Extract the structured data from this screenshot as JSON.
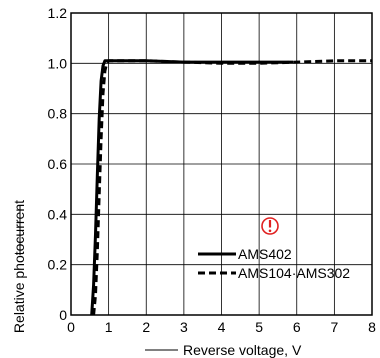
{
  "chart_data": {
    "type": "line",
    "title": "",
    "xlabel": "Reverse voltage, V",
    "ylabel": "Relative photocurrent",
    "xlim": [
      0,
      8
    ],
    "ylim": [
      0,
      1.2
    ],
    "x_ticks": [
      0,
      1,
      2,
      3,
      4,
      5,
      6,
      7,
      8
    ],
    "y_ticks": [
      0,
      0.2,
      0.4,
      0.6,
      0.8,
      1.0,
      1.2
    ],
    "x_tick_labels": [
      "0",
      "1",
      "2",
      "3",
      "4",
      "5",
      "6",
      "7",
      "8"
    ],
    "y_tick_labels": [
      "0",
      "0.2",
      "0.4",
      "0.6",
      "0.8",
      "1.0",
      "1.2"
    ],
    "grid": true,
    "legend_position": "bottom-right",
    "series": [
      {
        "name": "AMS402",
        "style": "solid",
        "color": "#000000",
        "x": [
          0.55,
          0.6,
          0.65,
          0.7,
          0.75,
          0.8,
          0.85,
          0.9,
          1.0,
          2.0,
          3.0,
          4.0,
          5.0,
          5.9
        ],
        "y": [
          0.0,
          0.12,
          0.32,
          0.55,
          0.78,
          0.93,
          0.99,
          1.01,
          1.01,
          1.01,
          1.005,
          1.005,
          1.005,
          1.005
        ]
      },
      {
        "name": "AMS104·AMS302",
        "style": "dashed",
        "color": "#000000",
        "x": [
          0.6,
          0.65,
          0.7,
          0.75,
          0.8,
          0.85,
          0.9,
          0.95,
          1.0,
          2.0,
          3.0,
          4.0,
          5.0,
          6.0,
          7.0,
          8.0
        ],
        "y": [
          0.0,
          0.08,
          0.25,
          0.48,
          0.7,
          0.88,
          0.97,
          1.0,
          1.01,
          1.01,
          1.005,
          1.0,
          1.0,
          1.005,
          1.01,
          1.01
        ]
      }
    ],
    "annotations": [
      {
        "type": "warning-icon",
        "color": "#e02020",
        "x": 5.1,
        "y": 0.35
      }
    ]
  }
}
